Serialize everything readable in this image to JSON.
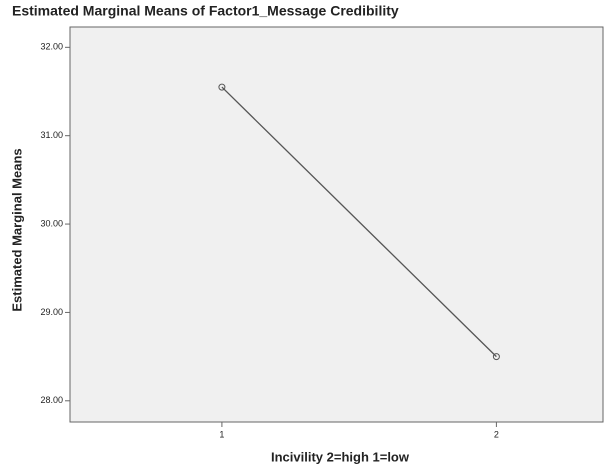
{
  "chart_data": {
    "type": "line",
    "title": "Estimated Marginal Means of Factor1_Message Credibility",
    "x_label": "Incivility 2=high 1=low",
    "y_label": "Estimated Marginal Means",
    "categories": [
      "1",
      "2"
    ],
    "series": [
      {
        "name": "Estimated Marginal Means",
        "color": "#555555",
        "values": [
          31.55,
          28.5
        ]
      }
    ],
    "ylim": [
      27.76,
      32.23
    ],
    "yticks": [
      {
        "value": 28,
        "label": "28.00"
      },
      {
        "value": 29,
        "label": "29.00"
      },
      {
        "value": 30,
        "label": "30.00"
      },
      {
        "value": 31,
        "label": "31.00"
      },
      {
        "value": 32,
        "label": "32.00"
      }
    ],
    "grid": false
  }
}
